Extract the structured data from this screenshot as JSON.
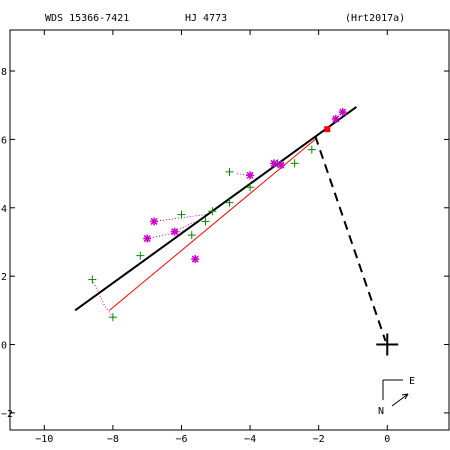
{
  "header": {
    "wds": "WDS 15366-7421",
    "discoverer": "HJ 4773",
    "reference": "(Hrt2017a)"
  },
  "compass": {
    "east": "E",
    "north": "N"
  },
  "colors": {
    "orbit_fit": "#000000",
    "linear_fit": "#ff0000",
    "obs_plus": "#008800",
    "obs_star": "#cc00cc",
    "latest": "#ff0000",
    "axes": "#000000"
  },
  "chart_data": {
    "type": "scatter",
    "title": "",
    "xlabel": "",
    "ylabel": "",
    "xlim": [
      -11,
      1.8
    ],
    "ylim": [
      -2.5,
      9.2
    ],
    "x_ticks": [
      -10,
      -8,
      -6,
      -4,
      -2,
      0
    ],
    "x_tick_labels": [
      "−10",
      "−8",
      "−6",
      "−4",
      "−2",
      "0"
    ],
    "y_ticks": [
      -2,
      0,
      2,
      4,
      6,
      8
    ],
    "y_tick_labels": [
      "−2",
      "0",
      "2",
      "4",
      "6",
      "8"
    ],
    "primary": [
      0,
      0
    ],
    "orbit_line": [
      [
        -9.1,
        1.0
      ],
      [
        -0.9,
        6.95
      ]
    ],
    "linear_fit_line": [
      [
        -8.1,
        1.0
      ],
      [
        -2.1,
        6.0
      ]
    ],
    "primary_connector": [
      [
        -2.1,
        6.1
      ],
      [
        -0.05,
        0.1
      ]
    ],
    "series": [
      {
        "marker": "plus",
        "points": [
          [
            -8.6,
            1.9
          ],
          [
            -8.0,
            0.8
          ],
          [
            -7.2,
            2.6
          ],
          [
            -6.0,
            3.8
          ],
          [
            -5.7,
            3.2
          ],
          [
            -5.3,
            3.6
          ],
          [
            -5.1,
            3.9
          ],
          [
            -4.6,
            4.15
          ],
          [
            -4.6,
            5.05
          ],
          [
            -4.0,
            4.6
          ],
          [
            -3.2,
            5.3
          ],
          [
            -2.7,
            5.3
          ],
          [
            -2.2,
            5.7
          ]
        ]
      },
      {
        "marker": "star",
        "points": [
          [
            -7.0,
            3.1
          ],
          [
            -6.8,
            3.6
          ],
          [
            -6.2,
            3.3
          ],
          [
            -5.6,
            2.5
          ],
          [
            -4.0,
            4.95
          ],
          [
            -3.3,
            5.3
          ],
          [
            -3.1,
            5.25
          ],
          [
            -1.5,
            6.6
          ],
          [
            -1.3,
            6.8
          ]
        ]
      },
      {
        "marker": "latest",
        "points": [
          [
            -1.75,
            6.3
          ]
        ]
      }
    ],
    "residual_links": [
      [
        [
          -8.6,
          1.9
        ],
        [
          -8.25,
          1.15
        ]
      ],
      [
        [
          -8.0,
          0.8
        ],
        [
          -8.25,
          1.15
        ]
      ],
      [
        [
          -7.0,
          3.1
        ],
        [
          -5.8,
          3.35
        ]
      ],
      [
        [
          -6.8,
          3.6
        ],
        [
          -5.3,
          3.8
        ]
      ],
      [
        [
          -6.2,
          3.3
        ],
        [
          -5.6,
          3.6
        ]
      ],
      [
        [
          -4.0,
          4.95
        ],
        [
          -4.4,
          5.0
        ]
      ],
      [
        [
          -3.3,
          5.3
        ],
        [
          -3.0,
          5.3
        ]
      ]
    ]
  }
}
